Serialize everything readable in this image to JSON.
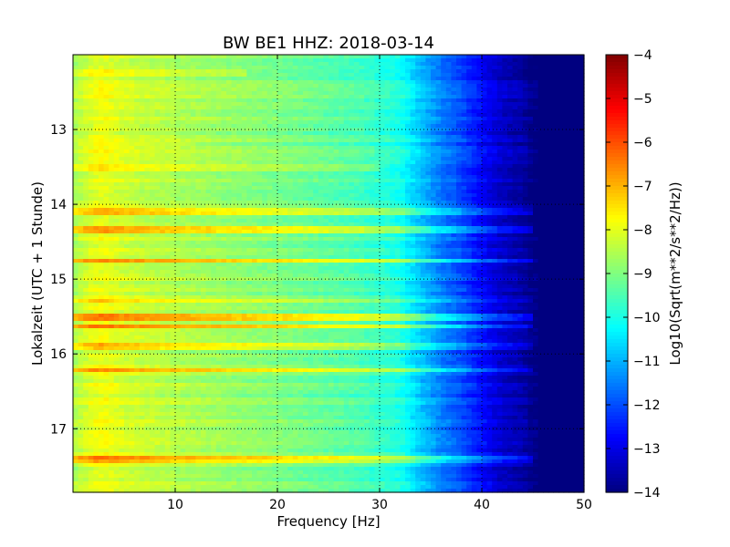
{
  "chart_data": {
    "type": "heatmap",
    "title": "BW BE1 HHZ: 2018-03-14",
    "xlabel": "Frequency [Hz]",
    "ylabel": "Lokalzeit (UTC + 1 Stunde)",
    "colorbar_label": "Log10(Sqrt(m**2/s**2/Hz))",
    "colormap": "jet",
    "xlim": [
      0,
      50
    ],
    "ylim": [
      12.0,
      17.85
    ],
    "y_inverted": true,
    "grid": true,
    "clim": [
      -14,
      -4
    ],
    "x_ticks": [
      10,
      20,
      30,
      40,
      50
    ],
    "x_tick_labels": [
      "10",
      "20",
      "30",
      "40",
      "50"
    ],
    "y_ticks": [
      13,
      14,
      15,
      16,
      17
    ],
    "y_tick_labels": [
      "13",
      "14",
      "15",
      "16",
      "17"
    ],
    "colorbar_ticks": [
      -4,
      -5,
      -6,
      -7,
      -8,
      -9,
      -10,
      -11,
      -12,
      -13,
      -14
    ],
    "colorbar_tick_labels": [
      "−4",
      "−5",
      "−6",
      "−7",
      "−8",
      "−9",
      "−10",
      "−11",
      "−12",
      "−13",
      "−14"
    ],
    "frequency_profile": {
      "frequency_hz": [
        0,
        2,
        3,
        5,
        10,
        20,
        28,
        32,
        34,
        36,
        38,
        40,
        42,
        44,
        45,
        50
      ],
      "log10_amplitude": [
        -8.6,
        -8.0,
        -7.9,
        -8.2,
        -8.5,
        -9.0,
        -9.5,
        -10.0,
        -10.8,
        -11.5,
        -12.0,
        -12.7,
        -13.3,
        -13.6,
        -14.0,
        -14.0
      ]
    },
    "bright_bands": [
      {
        "time_h": 12.25,
        "f_max_hz": 17,
        "boost": 0.5
      },
      {
        "time_h": 13.2,
        "f_max_hz": 12,
        "boost": 0.4
      },
      {
        "time_h": 13.5,
        "f_max_hz": 30,
        "boost": 0.6
      },
      {
        "time_h": 14.1,
        "f_max_hz": 45,
        "boost": 1.2
      },
      {
        "time_h": 14.35,
        "f_max_hz": 45,
        "boost": 1.4
      },
      {
        "time_h": 14.75,
        "f_max_hz": 45,
        "boost": 1.3
      },
      {
        "time_h": 15.3,
        "f_max_hz": 45,
        "boost": 0.9
      },
      {
        "time_h": 15.5,
        "f_max_hz": 45,
        "boost": 1.5
      },
      {
        "time_h": 15.62,
        "f_max_hz": 45,
        "boost": 1.6
      },
      {
        "time_h": 15.9,
        "f_max_hz": 45,
        "boost": 1.0
      },
      {
        "time_h": 16.22,
        "f_max_hz": 45,
        "boost": 1.6
      },
      {
        "time_h": 17.42,
        "f_max_hz": 45,
        "boost": 1.4
      }
    ]
  }
}
